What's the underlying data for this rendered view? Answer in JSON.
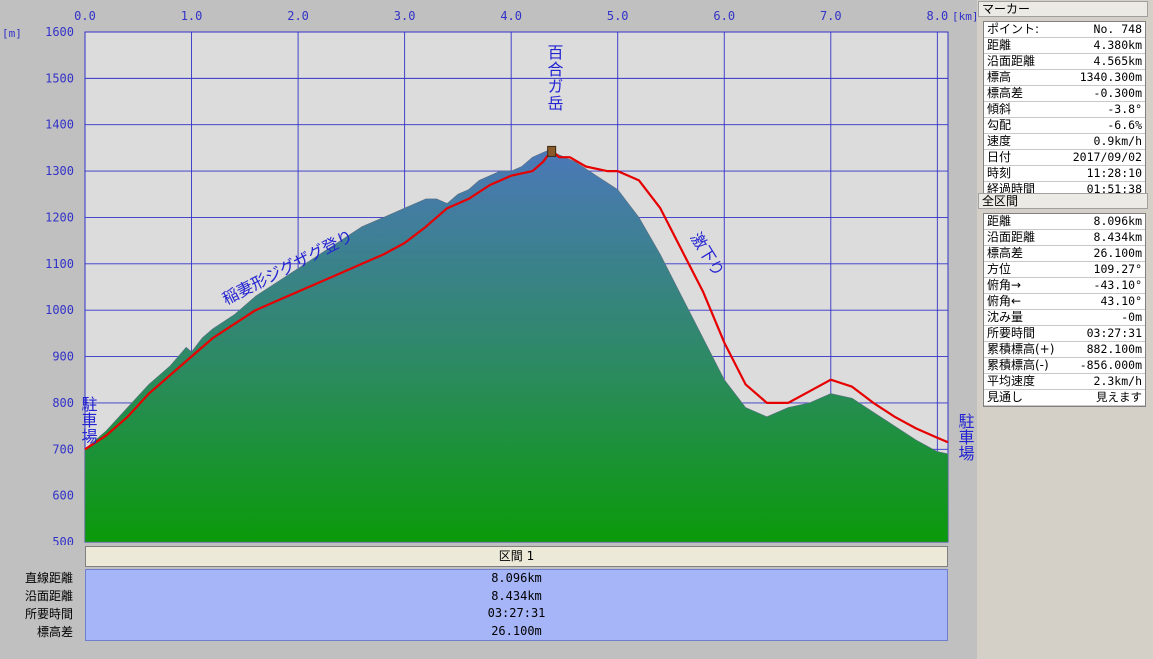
{
  "chart_data": {
    "type": "area",
    "xlabel_unit": "[km]",
    "ylabel_unit": "[m]",
    "xlim": [
      0,
      8.1
    ],
    "ylim": [
      500,
      1600
    ],
    "x_ticks": [
      "0.0",
      "1.0",
      "2.0",
      "3.0",
      "4.0",
      "5.0",
      "6.0",
      "7.0",
      "8.0"
    ],
    "y_ticks": [
      "500",
      "600",
      "700",
      "800",
      "900",
      "1000",
      "1100",
      "1200",
      "1300",
      "1400",
      "1500",
      "1600"
    ],
    "grid": true,
    "terrain_profile": {
      "x": [
        0.0,
        0.2,
        0.4,
        0.6,
        0.8,
        0.95,
        1.0,
        1.1,
        1.2,
        1.4,
        1.6,
        1.8,
        2.0,
        2.2,
        2.4,
        2.6,
        2.8,
        3.0,
        3.2,
        3.3,
        3.4,
        3.5,
        3.6,
        3.7,
        3.8,
        3.9,
        4.0,
        4.1,
        4.2,
        4.3,
        4.35,
        4.4,
        4.5,
        4.6,
        4.8,
        5.0,
        5.2,
        5.4,
        5.6,
        5.8,
        6.0,
        6.2,
        6.4,
        6.5,
        6.6,
        6.8,
        7.0,
        7.2,
        7.4,
        7.6,
        7.8,
        8.0,
        8.1
      ],
      "y": [
        700,
        740,
        790,
        840,
        880,
        920,
        910,
        940,
        960,
        990,
        1030,
        1060,
        1090,
        1120,
        1150,
        1180,
        1200,
        1220,
        1240,
        1240,
        1230,
        1250,
        1260,
        1280,
        1290,
        1300,
        1300,
        1310,
        1330,
        1340,
        1345,
        1340,
        1330,
        1320,
        1290,
        1260,
        1200,
        1120,
        1030,
        940,
        850,
        790,
        770,
        780,
        790,
        800,
        820,
        810,
        780,
        750,
        720,
        695,
        690
      ]
    },
    "track": {
      "x": [
        0.0,
        0.2,
        0.4,
        0.6,
        0.8,
        1.0,
        1.2,
        1.4,
        1.6,
        1.8,
        2.0,
        2.2,
        2.4,
        2.6,
        2.8,
        3.0,
        3.2,
        3.4,
        3.6,
        3.8,
        4.0,
        4.2,
        4.3,
        4.38,
        4.45,
        4.55,
        4.7,
        4.9,
        5.0,
        5.2,
        5.4,
        5.6,
        5.8,
        6.0,
        6.2,
        6.4,
        6.6,
        6.8,
        7.0,
        7.2,
        7.4,
        7.6,
        7.8,
        8.0,
        8.1
      ],
      "y": [
        700,
        730,
        770,
        820,
        860,
        900,
        940,
        970,
        1000,
        1020,
        1040,
        1060,
        1080,
        1100,
        1120,
        1145,
        1180,
        1220,
        1240,
        1270,
        1290,
        1300,
        1320,
        1345,
        1330,
        1330,
        1310,
        1300,
        1300,
        1280,
        1220,
        1130,
        1040,
        930,
        840,
        800,
        800,
        825,
        850,
        835,
        800,
        770,
        745,
        725,
        715
      ]
    },
    "marker": {
      "x": 4.38,
      "y": 1340.3
    },
    "annotations": [
      "百合ガ岳",
      "稲妻形ジグザグ登り",
      "激下り",
      "駐車場",
      "駐車場"
    ],
    "colors": {
      "plot_bg": "#dcdcdc",
      "grid": "#3232c8",
      "terrain_top": "#4b78b9",
      "terrain_bottom": "#0a9a0a",
      "track": "#e60000",
      "tick_text": "#3232c8"
    }
  },
  "section": {
    "header": "区間 1",
    "rows": [
      {
        "label": "直線距離",
        "value": "8.096km"
      },
      {
        "label": "沿面距離",
        "value": "8.434km"
      },
      {
        "label": "所要時間",
        "value": "03:27:31"
      },
      {
        "label": "標高差",
        "value": "26.100m"
      }
    ]
  },
  "marker_panel": {
    "title": "マーカー",
    "rows": [
      {
        "label": "ポイント:",
        "value": "No. 748"
      },
      {
        "label": "距離",
        "value": "4.380km"
      },
      {
        "label": "沿面距離",
        "value": "4.565km"
      },
      {
        "label": "標高",
        "value": "1340.300m"
      },
      {
        "label": "標高差",
        "value": "-0.300m"
      },
      {
        "label": "傾斜",
        "value": "-3.8°"
      },
      {
        "label": "勾配",
        "value": "-6.6%"
      },
      {
        "label": "速度",
        "value": "0.9km/h"
      },
      {
        "label": "日付",
        "value": "2017/09/02"
      },
      {
        "label": "時刻",
        "value": "11:28:10"
      },
      {
        "label": "経過時間",
        "value": "01:51:38"
      }
    ]
  },
  "total_panel": {
    "title": "全区間",
    "rows": [
      {
        "label": "距離",
        "value": "8.096km"
      },
      {
        "label": "沿面距離",
        "value": "8.434km"
      },
      {
        "label": "標高差",
        "value": "26.100m"
      },
      {
        "label": "方位",
        "value": "109.27°"
      },
      {
        "label": "俯角→",
        "value": "-43.10°"
      },
      {
        "label": "俯角←",
        "value": "43.10°"
      },
      {
        "label": "沈み量",
        "value": "-0m"
      },
      {
        "label": "所要時間",
        "value": "03:27:31"
      },
      {
        "label": "累積標高(+)",
        "value": "882.100m"
      },
      {
        "label": "累積標高(-)",
        "value": "-856.000m"
      },
      {
        "label": "平均速度",
        "value": "2.3km/h"
      },
      {
        "label": "見通し",
        "value": "見えます"
      }
    ]
  }
}
